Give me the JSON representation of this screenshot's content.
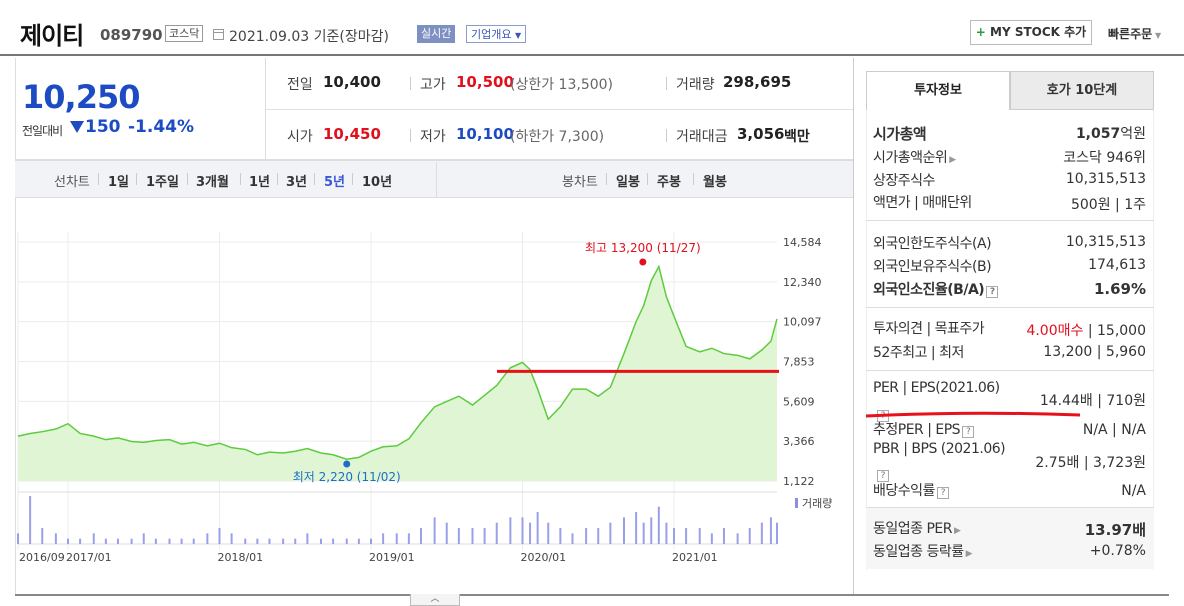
{
  "header": {
    "name": "제이티",
    "code": "089790",
    "market": "코스닥",
    "date": "2021.09.03 기준(장마감)",
    "live": "실시간",
    "company_info": "기업개요",
    "mystock": "MY STOCK 추가",
    "quick_order": "빠른주문"
  },
  "price": {
    "current": "10,250",
    "diff_label": "전일대비",
    "diff": "150",
    "pct": "-1.44%",
    "prev_label": "전일",
    "prev": "10,400",
    "high_label": "고가",
    "high": "10,500",
    "upper": "(상한가 13,500)",
    "vol_label": "거래량",
    "vol": "298,695",
    "open_label": "시가",
    "open": "10,450",
    "low_label": "저가",
    "low": "10,100",
    "lower": "(하한가 7,300)",
    "amt_label": "거래대금",
    "amt": "3,056",
    "amt_unit": "백만"
  },
  "period_bar": {
    "line_label": "선차트",
    "periods": [
      "1일",
      "1주일",
      "3개월",
      "1년",
      "3년",
      "5년",
      "10년"
    ],
    "active": "5년",
    "candle_label": "봉차트",
    "candles": [
      "일봉",
      "주봉",
      "월봉"
    ]
  },
  "chart_data": {
    "type": "area",
    "x_ticks": [
      "2016/09",
      "2017/01",
      "2018/01",
      "2019/01",
      "2020/01",
      "2021/01"
    ],
    "y_ticks": [
      14584,
      12340,
      10097,
      7853,
      5609,
      3366,
      1122
    ],
    "ylim": [
      1122,
      14584
    ],
    "x_range": [
      2016.67,
      2021.68
    ],
    "max_annotation": "최고 13,200 (11/27)",
    "min_annotation": "최저 2,220 (11/02)",
    "max_point": {
      "x": 2020.9,
      "y": 13200
    },
    "min_point": {
      "x": 2018.84,
      "y": 2220
    },
    "volume_label": "거래량",
    "series_x": [
      2016.67,
      2016.75,
      2016.83,
      2016.92,
      2017.0,
      2017.08,
      2017.17,
      2017.25,
      2017.33,
      2017.42,
      2017.5,
      2017.58,
      2017.67,
      2017.75,
      2017.83,
      2017.92,
      2018.0,
      2018.08,
      2018.17,
      2018.25,
      2018.33,
      2018.42,
      2018.5,
      2018.58,
      2018.67,
      2018.75,
      2018.84,
      2018.92,
      2019.0,
      2019.08,
      2019.17,
      2019.25,
      2019.33,
      2019.42,
      2019.5,
      2019.58,
      2019.67,
      2019.75,
      2019.83,
      2019.92,
      2020.0,
      2020.05,
      2020.1,
      2020.17,
      2020.25,
      2020.33,
      2020.42,
      2020.5,
      2020.58,
      2020.67,
      2020.75,
      2020.8,
      2020.85,
      2020.9,
      2020.95,
      2021.0,
      2021.08,
      2021.17,
      2021.25,
      2021.33,
      2021.42,
      2021.5,
      2021.58,
      2021.64,
      2021.68
    ],
    "values": [
      3650,
      3800,
      3900,
      4050,
      4350,
      3800,
      3650,
      3450,
      3550,
      3350,
      3300,
      3400,
      3450,
      3200,
      3300,
      3100,
      3250,
      3000,
      2900,
      2600,
      2750,
      2700,
      2800,
      2950,
      2700,
      2600,
      2350,
      2450,
      2800,
      3050,
      3100,
      3500,
      4400,
      5300,
      5600,
      5900,
      5400,
      5950,
      6500,
      7500,
      7800,
      7400,
      6300,
      4600,
      5300,
      6300,
      6300,
      5900,
      6400,
      8300,
      10100,
      11000,
      12400,
      13200,
      11500,
      10400,
      8700,
      8400,
      8600,
      8300,
      8200,
      8000,
      8500,
      9000,
      10250
    ],
    "volumes": [
      2,
      9,
      3,
      2,
      1,
      1,
      2,
      1,
      1,
      1,
      2,
      1,
      1,
      1,
      1,
      2,
      3,
      2,
      1,
      1,
      1,
      1,
      1,
      2,
      1,
      1,
      1,
      1,
      1,
      2,
      2,
      2,
      3,
      5,
      4,
      3,
      3,
      3,
      4,
      5,
      5,
      4,
      6,
      4,
      3,
      2,
      3,
      3,
      4,
      5,
      6,
      4,
      5,
      7,
      4,
      3,
      3,
      3,
      2,
      3,
      2,
      3,
      4,
      5,
      4
    ]
  },
  "right_panel": {
    "tab_active": "투자정보",
    "tab_other": "호가 10단계",
    "rows1": [
      {
        "label": "시가총액",
        "value": "1,057",
        "unit": "억원",
        "bold": true
      },
      {
        "label": "시가총액순위",
        "value": "코스닥 946위"
      },
      {
        "label": "상장주식수",
        "value": "10,315,513"
      },
      {
        "label": "액면가 | 매매단위",
        "value": "500원 | 1주"
      }
    ],
    "rows2": [
      {
        "label": "외국인한도주식수(A)",
        "value": "10,315,513"
      },
      {
        "label": "외국인보유주식수(B)",
        "value": "174,613"
      },
      {
        "label": "외국인소진율(B/A)",
        "value": "1.69%"
      }
    ],
    "rows3": [
      {
        "label": "투자의견 | 목표주가",
        "value_red": "4.00매수",
        "value": "| 15,000"
      },
      {
        "label": "52주최고 | 최저",
        "value": "13,200 | 5,960"
      }
    ],
    "rows4": [
      {
        "label": "PER | EPS(2021.06)",
        "value": "14.44배 | 710원"
      },
      {
        "label": "추정PER | EPS",
        "value": "N/A | N/A"
      },
      {
        "label": "PBR | BPS (2021.06)",
        "value": "2.75배 | 3,723원"
      },
      {
        "label": "배당수익률",
        "value": "N/A"
      }
    ],
    "rows5": [
      {
        "label": "동일업종 PER",
        "value": "13.97배"
      },
      {
        "label": "동일업종 등락률",
        "value": "+0.78%"
      }
    ]
  },
  "colors": {
    "accent_blue": "#1c4bc4",
    "up_red": "#e0101d",
    "chart_line": "#5ccc3c",
    "chart_fill": "#dff5d4",
    "overlay_red": "#e8101a"
  }
}
